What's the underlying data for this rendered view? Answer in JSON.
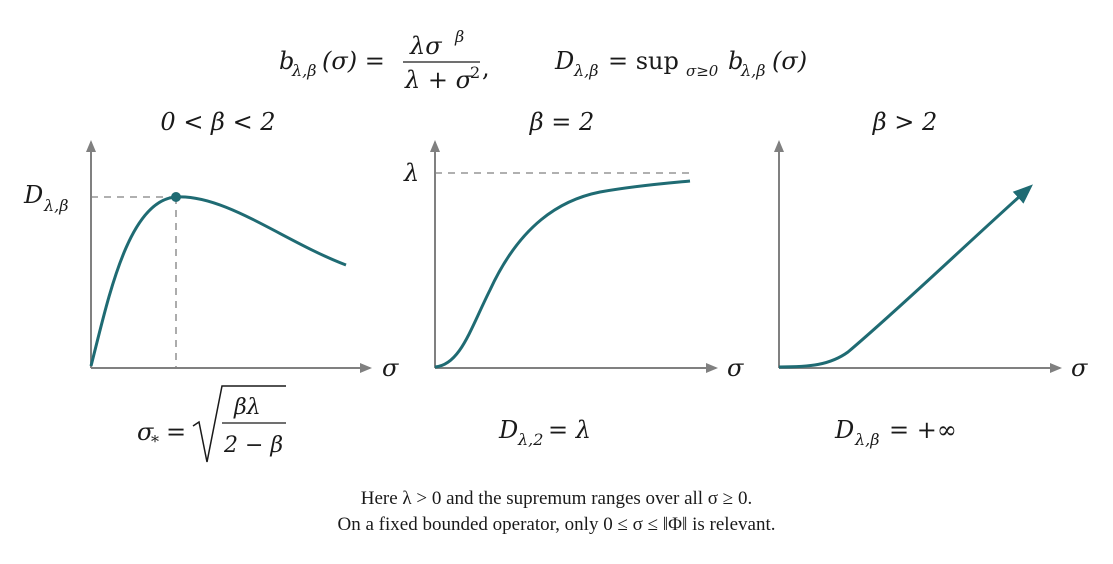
{
  "formula": {
    "b_lhs": "b",
    "b_sub": "λ,β",
    "b_arg": "(σ) =",
    "num": "λσ",
    "num_sup": "β",
    "den": "λ + σ",
    "den_sup": "2",
    "comma": ",",
    "D_lhs": "D",
    "D_sub": "λ,β",
    "D_eq": "= sup",
    "D_sup_sub": "σ≥0",
    "D_b": "b",
    "D_b_sub": "λ,β",
    "D_arg": "(σ)"
  },
  "panels": [
    {
      "title": "0 < β < 2",
      "y_label_main": "D",
      "y_label_sub": "λ,β",
      "x_label": "σ",
      "caption_lhs": "σ",
      "caption_sub": "*",
      "caption_eq": "=",
      "caption_num": "βλ",
      "caption_den": "2 − β"
    },
    {
      "title": "β = 2",
      "y_label_main": "λ",
      "x_label": "σ",
      "caption_main": "D",
      "caption_sub": "λ,2",
      "caption_rest": " = λ"
    },
    {
      "title": "β > 2",
      "x_label": "σ",
      "caption_main": "D",
      "caption_sub": "λ,β",
      "caption_rest": " = +∞"
    }
  ],
  "notes": {
    "line1": "Here λ > 0 and the supremum ranges over all σ ≥ 0.",
    "line2": "On a fixed bounded operator, only 0 ≤ σ ≤ ‖Φ‖ is relevant."
  },
  "colors": {
    "curve": "#1f6b73",
    "axis": "#808080",
    "dash": "#808080",
    "text": "#1a1a1a"
  }
}
